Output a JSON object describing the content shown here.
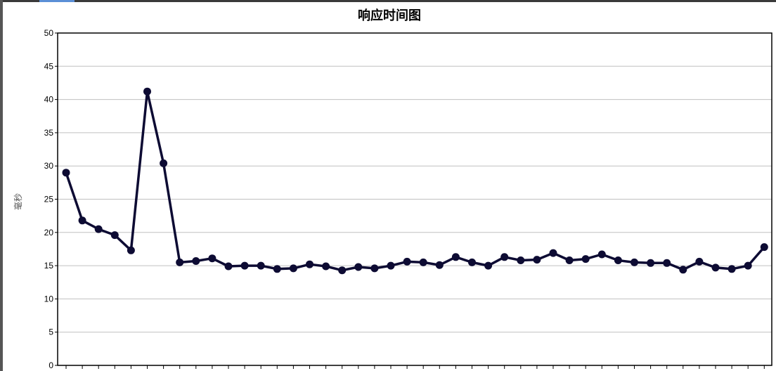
{
  "chart_data": {
    "type": "line",
    "title": "响应时间图",
    "xlabel": "",
    "ylabel": "毫秒",
    "ylim": [
      0,
      50
    ],
    "yticks": [
      0,
      5,
      10,
      15,
      20,
      25,
      30,
      35,
      40,
      45,
      50
    ],
    "grid": true,
    "legend": "none",
    "series": [
      {
        "color": "#0d0b33",
        "values": [
          29.0,
          21.8,
          20.5,
          19.6,
          17.3,
          41.2,
          30.4,
          15.5,
          15.7,
          16.1,
          14.9,
          15.0,
          15.0,
          14.5,
          14.6,
          15.2,
          14.9,
          14.3,
          14.8,
          14.6,
          15.0,
          15.6,
          15.5,
          15.1,
          16.3,
          15.5,
          15.0,
          16.3,
          15.8,
          15.9,
          16.9,
          15.8,
          16.0,
          16.7,
          15.8,
          15.5,
          15.4,
          15.4,
          14.4,
          15.6,
          14.7,
          14.5,
          15.0,
          17.8
        ]
      }
    ]
  },
  "colors": {
    "line": "#0d0b33",
    "grid": "#c0c0c0",
    "axis": "#000000",
    "top_strip": "#3a3a3a",
    "tab_accent": "#5b8fd6"
  }
}
